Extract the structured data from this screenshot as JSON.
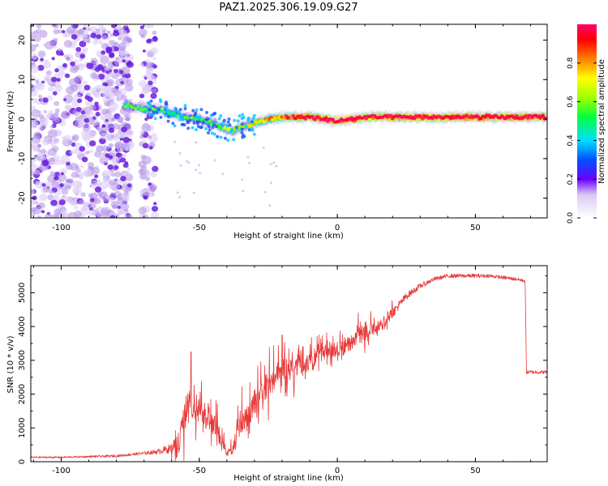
{
  "title": "PAZ1.2025.306.19.09.G27",
  "chart_data": [
    {
      "type": "heatmap",
      "title": "PAZ1.2025.306.19.09.G27",
      "xlabel": "Height of straight line (km)",
      "ylabel": "Frequency (Hz)",
      "xlim": [
        -111,
        76
      ],
      "ylim": [
        -25,
        24
      ],
      "xticks": [
        -100,
        -50,
        0,
        50
      ],
      "yticks": [
        -20,
        -10,
        0,
        10,
        20
      ],
      "ridge": {
        "x": [
          -76,
          -70,
          -65,
          -60,
          -55,
          -50,
          -45,
          -40,
          -38,
          -35,
          -30,
          -25,
          -20,
          -15,
          -10,
          -5,
          0,
          5,
          10,
          20,
          30,
          40,
          50,
          60,
          70,
          75
        ],
        "freq": [
          3.5,
          2.5,
          2.5,
          1.5,
          0.5,
          0,
          -1,
          -2.5,
          -3,
          -2,
          -1,
          0,
          0.5,
          0.5,
          0.5,
          0,
          -0.5,
          0,
          0.5,
          0.5,
          0.5,
          0.5,
          0.5,
          0.5,
          0.5,
          0.5
        ],
        "amplitude": [
          0.35,
          0.35,
          0.4,
          0.35,
          0.35,
          0.4,
          0.4,
          0.5,
          0.55,
          0.5,
          0.55,
          0.6,
          0.7,
          0.75,
          0.85,
          0.85,
          0.9,
          0.9,
          0.8,
          0.85,
          0.85,
          0.85,
          0.85,
          0.85,
          0.85,
          0.85
        ]
      },
      "noise_region": {
        "x_from": -111,
        "x_to": -75,
        "amplitude": 0.1
      },
      "colorbar": {
        "label": "Normalized spectral amplitude",
        "range": [
          0,
          1
        ],
        "ticks": [
          "0.0",
          "0.2",
          "0.4",
          "0.6",
          "0.8"
        ]
      }
    },
    {
      "type": "line",
      "xlabel": "Height of straight line (km)",
      "ylabel": "SNR (10 * v/v)",
      "xlim": [
        -111,
        76
      ],
      "ylim": [
        0,
        5800
      ],
      "xticks": [
        -100,
        -50,
        0,
        50
      ],
      "yticks": [
        0,
        1000,
        2000,
        3000,
        4000,
        5000
      ],
      "series": [
        {
          "name": "SNR",
          "color": "#e83a3a",
          "x": [
            -111,
            -100,
            -90,
            -80,
            -70,
            -65,
            -60,
            -57,
            -55,
            -53,
            -50,
            -47,
            -45,
            -42,
            -40,
            -38,
            -35,
            -32,
            -30,
            -25,
            -20,
            -15,
            -10,
            -5,
            0,
            5,
            10,
            15,
            20,
            25,
            30,
            35,
            40,
            45,
            50,
            55,
            60,
            65,
            68,
            68.5,
            70,
            76
          ],
          "values": [
            130,
            130,
            150,
            170,
            250,
            300,
            400,
            700,
            1400,
            1700,
            1500,
            1300,
            1150,
            700,
            250,
            350,
            1200,
            1300,
            1800,
            2300,
            2700,
            2800,
            2900,
            3300,
            3300,
            3500,
            3800,
            4000,
            4400,
            4900,
            5200,
            5400,
            5500,
            5500,
            5500,
            5500,
            5450,
            5400,
            5350,
            2650,
            2650,
            2650
          ],
          "noise_amplitude": [
            40,
            40,
            50,
            60,
            80,
            120,
            250,
            500,
            900,
            800,
            700,
            600,
            500,
            350,
            150,
            250,
            600,
            600,
            700,
            650,
            600,
            550,
            500,
            450,
            400,
            400,
            350,
            300,
            250,
            180,
            130,
            100,
            100,
            100,
            100,
            90,
            90,
            90,
            90,
            90,
            90,
            90
          ],
          "peaks": [
            {
              "x": -53,
              "value": 3250
            },
            {
              "x": -20,
              "value": 3750
            }
          ]
        }
      ]
    }
  ]
}
